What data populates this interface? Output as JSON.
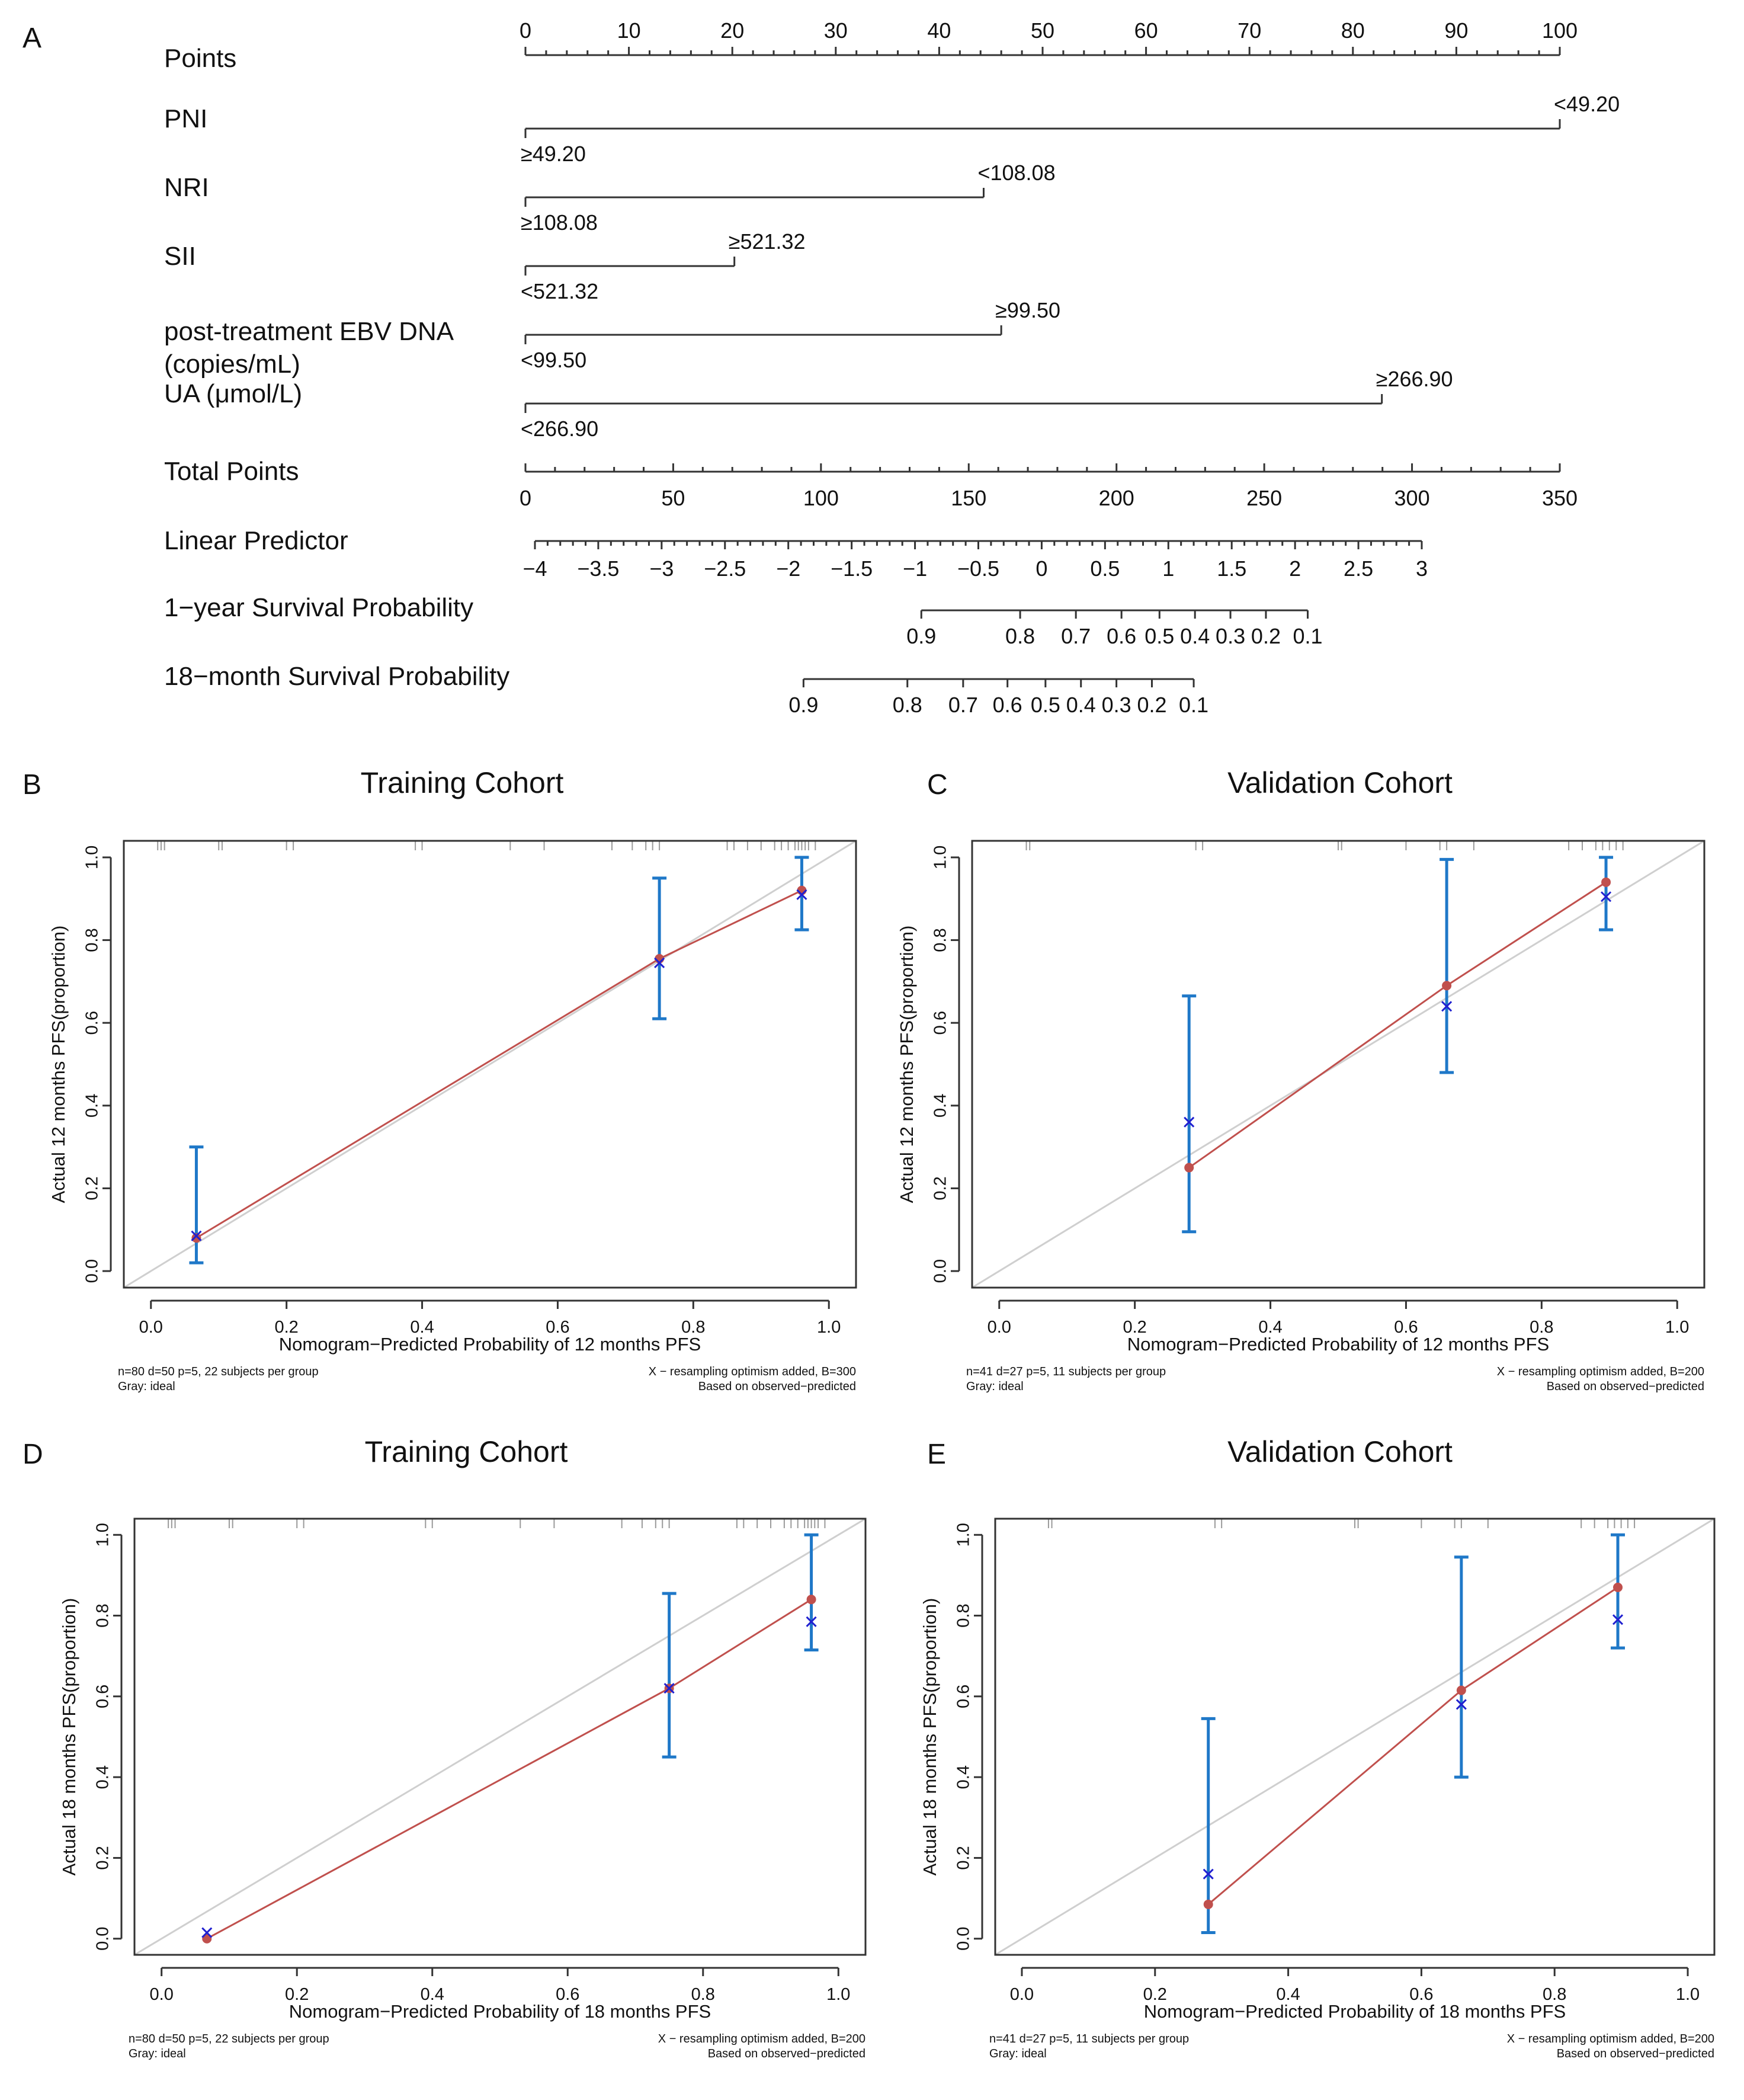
{
  "colors": {
    "text": "#111111",
    "axis": "#333333",
    "ideal": "#cfcfcf",
    "apparent": "#c0504d",
    "bias_corrected": "#2020d0",
    "error_bar": "#1f78c8",
    "rug": "#9a9a9a"
  },
  "chart_data": [
    {
      "panel": "A",
      "type": "nomogram",
      "rows": [
        {
          "label": "Points",
          "scale": {
            "min": 0,
            "max": 100,
            "ticks": [
              "0",
              "10",
              "20",
              "30",
              "40",
              "50",
              "60",
              "70",
              "80",
              "90",
              "100"
            ],
            "minor_step": 2
          }
        },
        {
          "label": "PNI",
          "points": {
            "start": 0,
            "end": 100
          },
          "start_label": "≥49.20",
          "end_label": "<49.20"
        },
        {
          "label": "NRI",
          "points": {
            "start": 0,
            "end": 44.3
          },
          "start_label": "≥108.08",
          "end_label": "<108.08"
        },
        {
          "label": "SII",
          "points": {
            "start": 0,
            "end": 20.2
          },
          "start_label": "<521.32",
          "end_label": "≥521.32"
        },
        {
          "label": "post-treatment EBV DNA",
          "label_line2": "(copies/mL)",
          "points": {
            "start": 0,
            "end": 46
          },
          "start_label": "<99.50",
          "end_label": "≥99.50"
        },
        {
          "label": "UA (μmol/L)",
          "points": {
            "start": 0,
            "end": 82.8
          },
          "start_label": "<266.90",
          "end_label": "≥266.90"
        },
        {
          "label": "Total Points",
          "scale": {
            "min": 0,
            "max": 350,
            "ticks": [
              "0",
              "50",
              "100",
              "150",
              "200",
              "250",
              "300",
              "350"
            ]
          }
        },
        {
          "label": "Linear Predictor",
          "scale": {
            "values": [
              -4,
              -3.5,
              -3,
              -2.5,
              -2,
              -1.5,
              -1,
              -0.5,
              0,
              0.5,
              1,
              1.5,
              2,
              2.5,
              3
            ],
            "ticks": [
              "−4",
              "−3.5",
              "−3",
              "−2.5",
              "−2",
              "−1.5",
              "−1",
              "−0.5",
              "0",
              "0.5",
              "1",
              "1.5",
              "2",
              "2.5",
              "3"
            ]
          }
        },
        {
          "label": "1−year Survival Probability",
          "ticks": [
            "0.9",
            "0.8",
            "0.7",
            "0.6",
            "0.5",
            "0.4",
            "0.3",
            "0.2",
            "0.1"
          ],
          "lp_positions": [
            -0.95,
            -0.17,
            0.27,
            0.63,
            0.93,
            1.21,
            1.49,
            1.77,
            2.1
          ]
        },
        {
          "label": "18−month Survival Probability",
          "ticks": [
            "0.9",
            "0.8",
            "0.7",
            "0.6",
            "0.5",
            "0.4",
            "0.3",
            "0.2",
            "0.1"
          ],
          "lp_positions": [
            -1.88,
            -1.06,
            -0.62,
            -0.27,
            0.03,
            0.31,
            0.59,
            0.87,
            1.2
          ]
        }
      ]
    },
    {
      "panel": "B",
      "type": "scatter",
      "title": "Training Cohort",
      "xlabel": "Nomogram−Predicted Probability of 12 months PFS",
      "ylabel": "Actual 12 months PFS(proportion)",
      "xlim": [
        -0.04,
        1.04
      ],
      "ylim": [
        -0.04,
        1.04
      ],
      "ticks": [
        "0.0",
        "0.2",
        "0.4",
        "0.6",
        "0.8",
        "1.0"
      ],
      "apparent": {
        "x": [
          0.067,
          0.75,
          0.96
        ],
        "y": [
          0.08,
          0.755,
          0.92
        ]
      },
      "bias_corrected": {
        "x": [
          0.067,
          0.75,
          0.96
        ],
        "y": [
          0.085,
          0.745,
          0.91
        ]
      },
      "ci": [
        [
          0.02,
          0.3
        ],
        [
          0.61,
          0.95
        ],
        [
          0.825,
          1.0
        ]
      ],
      "rug": [
        0.01,
        0.015,
        0.02,
        0.1,
        0.105,
        0.2,
        0.21,
        0.39,
        0.4,
        0.53,
        0.58,
        0.68,
        0.71,
        0.73,
        0.74,
        0.75,
        0.85,
        0.86,
        0.88,
        0.9,
        0.92,
        0.93,
        0.94,
        0.95,
        0.955,
        0.96,
        0.965,
        0.97,
        0.98
      ],
      "note_left_1": "n=80 d=50 p=5, 22 subjects per group",
      "note_left_2": "Gray: ideal",
      "note_right_1": "X − resampling optimism added, B=300",
      "note_right_2": "Based on observed−predicted"
    },
    {
      "panel": "C",
      "type": "scatter",
      "title": "Validation Cohort",
      "xlabel": "Nomogram−Predicted Probability of 12 months PFS",
      "ylabel": "Actual 12 months PFS(proportion)",
      "xlim": [
        -0.04,
        1.04
      ],
      "ylim": [
        -0.04,
        1.04
      ],
      "ticks": [
        "0.0",
        "0.2",
        "0.4",
        "0.6",
        "0.8",
        "1.0"
      ],
      "apparent": {
        "x": [
          0.28,
          0.66,
          0.895
        ],
        "y": [
          0.25,
          0.69,
          0.94
        ]
      },
      "bias_corrected": {
        "x": [
          0.28,
          0.66,
          0.895
        ],
        "y": [
          0.36,
          0.64,
          0.905
        ]
      },
      "ci": [
        [
          0.095,
          0.665
        ],
        [
          0.48,
          0.995
        ],
        [
          0.825,
          1.0
        ]
      ],
      "rug": [
        0.04,
        0.045,
        0.29,
        0.3,
        0.5,
        0.505,
        0.6,
        0.65,
        0.66,
        0.7,
        0.84,
        0.86,
        0.88,
        0.89,
        0.9,
        0.91,
        0.92
      ],
      "note_left_1": "n=41 d=27 p=5, 11 subjects per group",
      "note_left_2": "Gray: ideal",
      "note_right_1": "X − resampling optimism added, B=200",
      "note_right_2": "Based on observed−predicted"
    },
    {
      "panel": "D",
      "type": "scatter",
      "title": "Training Cohort",
      "xlabel": "Nomogram−Predicted Probability of 18 months PFS",
      "ylabel": "Actual 18 months PFS(proportion)",
      "xlim": [
        -0.04,
        1.04
      ],
      "ylim": [
        -0.04,
        1.04
      ],
      "ticks": [
        "0.0",
        "0.2",
        "0.4",
        "0.6",
        "0.8",
        "1.0"
      ],
      "apparent": {
        "x": [
          0.067,
          0.75,
          0.96
        ],
        "y": [
          0.0,
          0.62,
          0.84
        ]
      },
      "bias_corrected": {
        "x": [
          0.067,
          0.75,
          0.96
        ],
        "y": [
          0.015,
          0.62,
          0.785
        ]
      },
      "ci": [
        [
          0.0,
          0.0
        ],
        [
          0.45,
          0.855
        ],
        [
          0.715,
          1.0
        ]
      ],
      "rug": [
        0.01,
        0.015,
        0.02,
        0.1,
        0.105,
        0.2,
        0.21,
        0.39,
        0.4,
        0.53,
        0.58,
        0.68,
        0.71,
        0.73,
        0.74,
        0.75,
        0.85,
        0.86,
        0.88,
        0.9,
        0.92,
        0.93,
        0.94,
        0.95,
        0.955,
        0.96,
        0.965,
        0.97,
        0.98
      ],
      "note_left_1": "n=80 d=50 p=5, 22 subjects per group",
      "note_left_2": "Gray: ideal",
      "note_right_1": "X − resampling optimism added, B=200",
      "note_right_2": "Based on observed−predicted"
    },
    {
      "panel": "E",
      "type": "scatter",
      "title": "Validation Cohort",
      "xlabel": "Nomogram−Predicted Probability of 18 months PFS",
      "ylabel": "Actual 18 months PFS(proportion)",
      "xlim": [
        -0.04,
        1.04
      ],
      "ylim": [
        -0.04,
        1.04
      ],
      "ticks": [
        "0.0",
        "0.2",
        "0.4",
        "0.6",
        "0.8",
        "1.0"
      ],
      "apparent": {
        "x": [
          0.28,
          0.66,
          0.895
        ],
        "y": [
          0.085,
          0.615,
          0.87
        ]
      },
      "bias_corrected": {
        "x": [
          0.28,
          0.66,
          0.895
        ],
        "y": [
          0.16,
          0.58,
          0.79
        ]
      },
      "ci": [
        [
          0.015,
          0.545
        ],
        [
          0.4,
          0.945
        ],
        [
          0.72,
          1.0
        ]
      ],
      "rug": [
        0.04,
        0.045,
        0.29,
        0.3,
        0.5,
        0.505,
        0.6,
        0.65,
        0.66,
        0.7,
        0.84,
        0.86,
        0.88,
        0.89,
        0.9,
        0.91,
        0.92
      ],
      "note_left_1": "n=41 d=27 p=5, 11 subjects per group",
      "note_left_2": "Gray: ideal",
      "note_right_1": "X − resampling optimism added, B=200",
      "note_right_2": "Based on observed−predicted"
    }
  ]
}
